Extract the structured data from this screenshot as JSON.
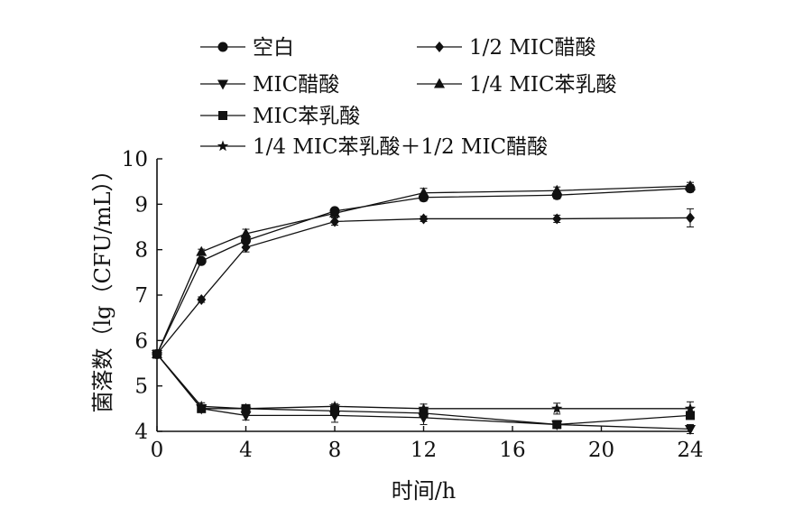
{
  "chart_data": {
    "type": "line",
    "title": "",
    "xlabel": "时间/h",
    "ylabel": "菌落数（lg（CFU/mL））",
    "xlim": [
      0,
      24
    ],
    "ylim": [
      4,
      10
    ],
    "x_ticks": [
      0,
      4,
      8,
      12,
      16,
      20,
      24
    ],
    "y_ticks": [
      4,
      5,
      6,
      7,
      8,
      9,
      10
    ],
    "grid": false,
    "legend_position": "top",
    "x": [
      0,
      2,
      4,
      8,
      12,
      18,
      24
    ],
    "series": [
      {
        "name": "空白",
        "marker": "circle",
        "values": [
          5.7,
          7.75,
          8.2,
          8.85,
          9.15,
          9.2,
          9.35
        ],
        "err": [
          0.05,
          0.05,
          0.05,
          0.06,
          0.08,
          0.08,
          0.08
        ]
      },
      {
        "name": "1/2 MIC醋酸",
        "marker": "diamond",
        "values": [
          5.7,
          6.9,
          8.05,
          8.62,
          8.68,
          8.68,
          8.7
        ],
        "err": [
          0.05,
          0.06,
          0.1,
          0.08,
          0.06,
          0.08,
          0.2
        ]
      },
      {
        "name": "MIC醋酸",
        "marker": "triangle-down",
        "values": [
          5.7,
          4.5,
          4.35,
          4.35,
          4.3,
          4.15,
          4.05
        ],
        "err": [
          0.05,
          0.08,
          0.1,
          0.15,
          0.15,
          0.05,
          0.1
        ]
      },
      {
        "name": "1/4 MIC苯乳酸",
        "marker": "triangle-up",
        "values": [
          5.7,
          7.95,
          8.35,
          8.8,
          9.25,
          9.3,
          9.4
        ],
        "err": [
          0.05,
          0.06,
          0.1,
          0.06,
          0.1,
          0.08,
          0.08
        ]
      },
      {
        "name": "MIC苯乳酸",
        "marker": "square",
        "values": [
          5.7,
          4.5,
          4.5,
          4.45,
          4.4,
          4.15,
          4.35
        ],
        "err": [
          0.05,
          0.05,
          0.05,
          0.06,
          0.08,
          0.05,
          0.05
        ]
      },
      {
        "name": "1/4 MIC苯乳酸＋1/2 MIC醋酸",
        "marker": "star",
        "values": [
          5.7,
          4.55,
          4.5,
          4.55,
          4.5,
          4.5,
          4.5
        ],
        "err": [
          0.05,
          0.08,
          0.08,
          0.06,
          0.1,
          0.12,
          0.15
        ]
      }
    ]
  }
}
